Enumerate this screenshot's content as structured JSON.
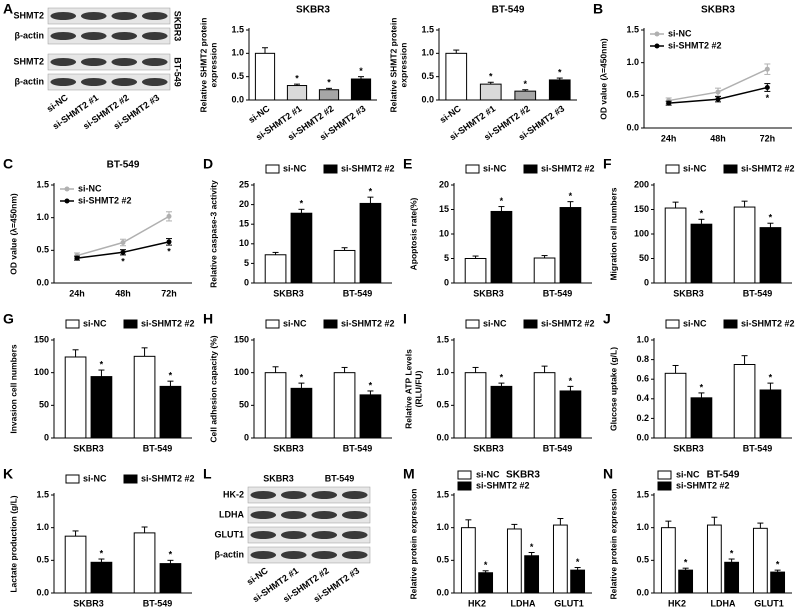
{
  "chart_data": [
    {
      "type": "blot",
      "panel": "A",
      "rows": [
        "SHMT2",
        "β-actin",
        "SHMT2",
        "β-actin"
      ],
      "cell_lines": [
        "SKBR3",
        "BT-549"
      ],
      "cell_line_position": "right",
      "lanes": [
        "si-NC",
        "si-SHMT2 #1",
        "si-SHMT2 #2",
        "si-SHMT2 #3"
      ]
    },
    {
      "type": "bar",
      "title": "SKBR3",
      "ylabel": [
        "Relative SHMT2 protein",
        "expression"
      ],
      "categories": [
        "si-NC",
        "si-SHMT2 #1",
        "si-SHMT2 #2",
        "si-SHMT2 #3"
      ],
      "values": [
        1.0,
        0.31,
        0.22,
        0.45
      ],
      "errors": [
        0.12,
        0.03,
        0.03,
        0.05
      ],
      "marks": [
        null,
        "*",
        "*",
        "*"
      ],
      "colors": [
        "#ffffff",
        "#d9d9d9",
        "#a6a6a6",
        "#000000"
      ],
      "ylim": [
        0,
        1.5
      ],
      "yticks": [
        {
          "value": 0,
          "label": "0.0"
        },
        {
          "value": 0.5,
          "label": "0.5"
        },
        {
          "value": 1,
          "label": "1.0"
        },
        {
          "value": 1.5,
          "label": "1.5"
        }
      ]
    },
    {
      "type": "bar",
      "title": "BT-549",
      "ylabel": [
        "Relative SHMT2 protein",
        "expression"
      ],
      "categories": [
        "si-NC",
        "si-SHMT2 #1",
        "si-SHMT2 #2",
        "si-SHMT2 #3"
      ],
      "values": [
        1.0,
        0.34,
        0.19,
        0.43
      ],
      "errors": [
        0.07,
        0.04,
        0.03,
        0.04
      ],
      "marks": [
        null,
        "*",
        "*",
        "*"
      ],
      "colors": [
        "#ffffff",
        "#d9d9d9",
        "#a6a6a6",
        "#000000"
      ],
      "ylim": [
        0,
        1.5
      ],
      "yticks": [
        {
          "value": 0,
          "label": "0.0"
        },
        {
          "value": 0.5,
          "label": "0.5"
        },
        {
          "value": 1,
          "label": "1.0"
        },
        {
          "value": 1.5,
          "label": "1.5"
        }
      ]
    },
    {
      "type": "line",
      "panel": "B",
      "title": "SKBR3",
      "ylabel": "OD value (λ=450nm)",
      "categories": [
        "24h",
        "48h",
        "72h"
      ],
      "legend": "inside-top-left",
      "series": [
        {
          "name": "si-NC",
          "color": "#b0b0b0",
          "values": [
            0.42,
            0.55,
            0.9
          ],
          "errors": [
            0.04,
            0.06,
            0.08
          ]
        },
        {
          "name": "si-SHMT2 #2",
          "color": "#000000",
          "values": [
            0.38,
            0.44,
            0.62
          ],
          "errors": [
            0.03,
            0.04,
            0.06
          ],
          "marks": [
            null,
            null,
            "*"
          ]
        }
      ],
      "ylim": [
        0,
        1.5
      ],
      "yticks": [
        {
          "value": 0,
          "label": "0.0"
        },
        {
          "value": 0.5,
          "label": "0.5"
        },
        {
          "value": 1,
          "label": "1.0"
        },
        {
          "value": 1.5,
          "label": "1.5"
        }
      ]
    },
    {
      "type": "line",
      "panel": "C",
      "title": "BT-549",
      "ylabel": "OD value (λ=450nm)",
      "categories": [
        "24h",
        "48h",
        "72h"
      ],
      "legend": "inside-top-left",
      "series": [
        {
          "name": "si-NC",
          "color": "#b0b0b0",
          "values": [
            0.42,
            0.62,
            1.02
          ],
          "errors": [
            0.04,
            0.05,
            0.07
          ]
        },
        {
          "name": "si-SHMT2 #2",
          "color": "#000000",
          "values": [
            0.38,
            0.47,
            0.63
          ],
          "errors": [
            0.03,
            0.04,
            0.05
          ],
          "marks": [
            null,
            "*",
            "*"
          ]
        }
      ],
      "ylim": [
        0,
        1.5
      ],
      "yticks": [
        {
          "value": 0,
          "label": "0.0"
        },
        {
          "value": 0.5,
          "label": "0.5"
        },
        {
          "value": 1,
          "label": "1.0"
        },
        {
          "value": 1.5,
          "label": "1.5"
        }
      ]
    },
    {
      "type": "grouped_bar",
      "panel": "D",
      "ylabel": "Relative caspase-3 activity",
      "categories": [
        "SKBR3",
        "BT-549"
      ],
      "legend": "top",
      "series": [
        {
          "name": "si-NC",
          "color": "#ffffff",
          "values": [
            7.2,
            8.3
          ],
          "errors": [
            0.6,
            0.7
          ]
        },
        {
          "name": "si-SHMT2 #2",
          "color": "#000000",
          "values": [
            17.8,
            20.3
          ],
          "errors": [
            1.0,
            1.6
          ],
          "marks": [
            "*",
            "*"
          ]
        }
      ],
      "ylim": [
        0,
        25
      ],
      "yticks": [
        0,
        5,
        10,
        15,
        20,
        25
      ]
    },
    {
      "type": "grouped_bar",
      "panel": "E",
      "ylabel": "Apoptosis rate(%)",
      "categories": [
        "SKBR3",
        "BT-549"
      ],
      "legend": "top",
      "series": [
        {
          "name": "si-NC",
          "color": "#ffffff",
          "values": [
            5.0,
            5.1
          ],
          "errors": [
            0.5,
            0.5
          ]
        },
        {
          "name": "si-SHMT2 #2",
          "color": "#000000",
          "values": [
            14.6,
            15.4
          ],
          "errors": [
            1.0,
            1.2
          ],
          "marks": [
            "*",
            "*"
          ]
        }
      ],
      "ylim": [
        0,
        20
      ],
      "yticks": [
        0,
        5,
        10,
        15,
        20
      ]
    },
    {
      "type": "grouped_bar",
      "panel": "F",
      "ylabel": "Migration cell numbers",
      "categories": [
        "SKBR3",
        "BT-549"
      ],
      "legend": "top",
      "series": [
        {
          "name": "si-NC",
          "color": "#ffffff",
          "values": [
            153,
            155
          ],
          "errors": [
            12,
            12
          ]
        },
        {
          "name": "si-SHMT2 #2",
          "color": "#000000",
          "values": [
            120,
            113
          ],
          "errors": [
            10,
            9
          ],
          "marks": [
            "*",
            "*"
          ]
        }
      ],
      "ylim": [
        0,
        200
      ],
      "yticks": [
        0,
        50,
        100,
        150,
        200
      ]
    },
    {
      "type": "grouped_bar",
      "panel": "G",
      "ylabel": "Invasion cell numbers",
      "categories": [
        "SKBR3",
        "BT-549"
      ],
      "legend": "top",
      "series": [
        {
          "name": "si-NC",
          "color": "#ffffff",
          "values": [
            124,
            125
          ],
          "errors": [
            11,
            13
          ]
        },
        {
          "name": "si-SHMT2 #2",
          "color": "#000000",
          "values": [
            94,
            79
          ],
          "errors": [
            10,
            8
          ],
          "marks": [
            "*",
            "*"
          ]
        }
      ],
      "ylim": [
        0,
        150
      ],
      "yticks": [
        0,
        50,
        100,
        150
      ]
    },
    {
      "type": "grouped_bar",
      "panel": "H",
      "ylabel": "Cell adhesion capacity (%)",
      "categories": [
        "SKBR3",
        "BT-549"
      ],
      "legend": "top",
      "series": [
        {
          "name": "si-NC",
          "color": "#ffffff",
          "values": [
            100,
            100
          ],
          "errors": [
            9,
            8
          ]
        },
        {
          "name": "si-SHMT2 #2",
          "color": "#000000",
          "values": [
            76,
            66
          ],
          "errors": [
            8,
            6
          ],
          "marks": [
            "*",
            "*"
          ]
        }
      ],
      "ylim": [
        0,
        150
      ],
      "yticks": [
        0,
        50,
        100,
        150
      ]
    },
    {
      "type": "grouped_bar",
      "panel": "I",
      "ylabel": [
        "Relative ATP Levels",
        "(RLU/FU)"
      ],
      "categories": [
        "SKBR3",
        "BT-549"
      ],
      "legend": "top",
      "series": [
        {
          "name": "si-NC",
          "color": "#ffffff",
          "values": [
            1.0,
            1.0
          ],
          "errors": [
            0.08,
            0.1
          ]
        },
        {
          "name": "si-SHMT2 #2",
          "color": "#000000",
          "values": [
            0.79,
            0.72
          ],
          "errors": [
            0.05,
            0.07
          ],
          "marks": [
            "*",
            "*"
          ]
        }
      ],
      "ylim": [
        0,
        1.5
      ],
      "yticks": [
        {
          "value": 0,
          "label": "0.0"
        },
        {
          "value": 0.5,
          "label": "0.5"
        },
        {
          "value": 1,
          "label": "1.0"
        },
        {
          "value": 1.5,
          "label": "1.5"
        }
      ]
    },
    {
      "type": "grouped_bar",
      "panel": "J",
      "ylabel": "Glucose uptake (g/L)",
      "categories": [
        "SKBR3",
        "BT-549"
      ],
      "legend": "top",
      "series": [
        {
          "name": "si-NC",
          "color": "#ffffff",
          "values": [
            0.66,
            0.75
          ],
          "errors": [
            0.08,
            0.09
          ]
        },
        {
          "name": "si-SHMT2 #2",
          "color": "#000000",
          "values": [
            0.41,
            0.49
          ],
          "errors": [
            0.05,
            0.07
          ],
          "marks": [
            "*",
            "*"
          ]
        }
      ],
      "ylim": [
        0,
        1
      ],
      "yticks": [
        {
          "value": 0,
          "label": "0.0"
        },
        {
          "value": 0.2,
          "label": "0.2"
        },
        {
          "value": 0.4,
          "label": "0.4"
        },
        {
          "value": 0.6,
          "label": "0.6"
        },
        {
          "value": 0.8,
          "label": "0.8"
        },
        {
          "value": 1,
          "label": "1.0"
        }
      ]
    },
    {
      "type": "grouped_bar",
      "panel": "K",
      "ylabel": "Lactate production (g/L)",
      "categories": [
        "SKBR3",
        "BT-549"
      ],
      "legend": "top",
      "series": [
        {
          "name": "si-NC",
          "color": "#ffffff",
          "values": [
            0.87,
            0.92
          ],
          "errors": [
            0.08,
            0.09
          ]
        },
        {
          "name": "si-SHMT2 #2",
          "color": "#000000",
          "values": [
            0.47,
            0.45
          ],
          "errors": [
            0.05,
            0.05
          ],
          "marks": [
            "*",
            "*"
          ]
        }
      ],
      "ylim": [
        0,
        1.5
      ],
      "yticks": [
        {
          "value": 0,
          "label": "0.0"
        },
        {
          "value": 0.5,
          "label": "0.5"
        },
        {
          "value": 1,
          "label": "1.0"
        },
        {
          "value": 1.5,
          "label": "1.5"
        }
      ]
    },
    {
      "type": "blot",
      "panel": "L",
      "rows": [
        "HK-2",
        "LDHA",
        "GLUT1",
        "β-actin"
      ],
      "cell_lines": [
        "SKBR3",
        "BT-549"
      ],
      "cell_line_position": "top",
      "lanes": [
        "si-NC",
        "si-SHMT2 #1",
        "si-SHMT2 #2",
        "si-SHMT2 #3"
      ]
    },
    {
      "type": "grouped_bar",
      "panel": "M",
      "title": "SKBR3",
      "ylabel": "Relative protein expression",
      "categories": [
        "HK2",
        "LDHA",
        "GLUT1"
      ],
      "legend": "top-left",
      "series": [
        {
          "name": "si-NC",
          "color": "#ffffff",
          "values": [
            1.0,
            0.98,
            1.04
          ],
          "errors": [
            0.12,
            0.07,
            0.1
          ]
        },
        {
          "name": "si-SHMT2 #2",
          "color": "#000000",
          "values": [
            0.31,
            0.57,
            0.35
          ],
          "errors": [
            0.03,
            0.05,
            0.04
          ],
          "marks": [
            "*",
            "*",
            "*"
          ]
        }
      ],
      "ylim": [
        0,
        1.5
      ],
      "yticks": [
        {
          "value": 0,
          "label": "0.0"
        },
        {
          "value": 0.5,
          "label": "0.5"
        },
        {
          "value": 1,
          "label": "1.0"
        },
        {
          "value": 1.5,
          "label": "1.5"
        }
      ]
    },
    {
      "type": "grouped_bar",
      "panel": "N",
      "title": "BT-549",
      "ylabel": "Relative protein expression",
      "categories": [
        "HK2",
        "LDHA",
        "GLUT1"
      ],
      "legend": "top-left",
      "series": [
        {
          "name": "si-NC",
          "color": "#ffffff",
          "values": [
            1.0,
            1.04,
            0.99
          ],
          "errors": [
            0.1,
            0.12,
            0.08
          ]
        },
        {
          "name": "si-SHMT2 #2",
          "color": "#000000",
          "values": [
            0.35,
            0.47,
            0.32
          ],
          "errors": [
            0.03,
            0.05,
            0.03
          ],
          "marks": [
            "*",
            "*",
            "*"
          ]
        }
      ],
      "ylim": [
        0,
        1.5
      ],
      "yticks": [
        {
          "value": 0,
          "label": "0.0"
        },
        {
          "value": 0.5,
          "label": "0.5"
        },
        {
          "value": 1,
          "label": "1.0"
        },
        {
          "value": 1.5,
          "label": "1.5"
        }
      ]
    }
  ]
}
